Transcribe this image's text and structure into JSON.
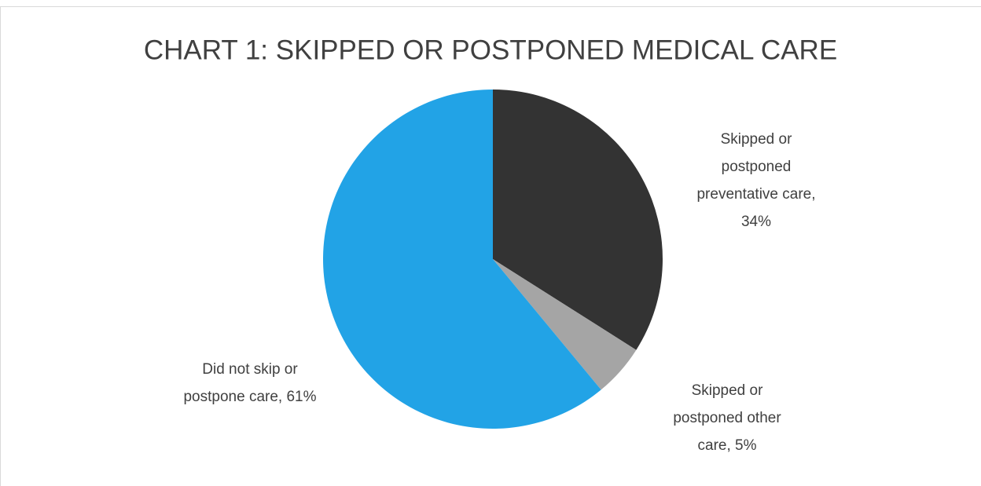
{
  "chart_data": {
    "type": "pie",
    "title": "CHART 1: SKIPPED OR POSTPONED MEDICAL CARE",
    "values": [
      34,
      5,
      61
    ],
    "value_labels": [
      "Skipped or postponed preventative care, 34%",
      "Skipped or postponed other care, 5%",
      "Did not skip or postpone care, 61%"
    ],
    "colors": [
      "#333333",
      "#a5a5a5",
      "#22a3e6"
    ]
  }
}
